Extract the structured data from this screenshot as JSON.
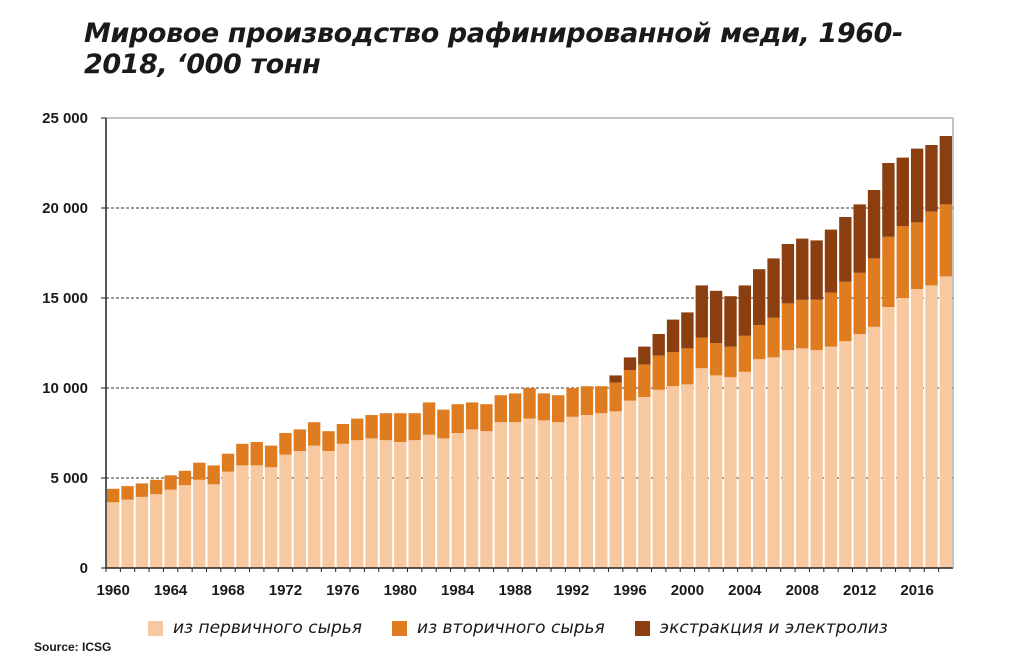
{
  "chart_data": {
    "type": "bar",
    "stacked": true,
    "title": "Мировое производство рафинированной меди, 1960-2018, ‘000 тонн",
    "ylim": [
      0,
      25000
    ],
    "yticks": [
      0,
      5000,
      10000,
      15000,
      20000,
      25000
    ],
    "ytick_labels": [
      "0",
      "5 000",
      "10 000",
      "15 000",
      "20 000",
      "25 000"
    ],
    "xtick_labels": [
      "1960",
      "1964",
      "1968",
      "1972",
      "1976",
      "1980",
      "1984",
      "1988",
      "1992",
      "1996",
      "2000",
      "2004",
      "2008",
      "2012",
      "2016"
    ],
    "grid": "horizontal dashed",
    "legend_position": "bottom",
    "categories": [
      1960,
      1961,
      1962,
      1963,
      1964,
      1965,
      1966,
      1967,
      1968,
      1969,
      1970,
      1971,
      1972,
      1973,
      1974,
      1975,
      1976,
      1977,
      1978,
      1979,
      1980,
      1981,
      1982,
      1983,
      1984,
      1985,
      1986,
      1987,
      1988,
      1989,
      1990,
      1991,
      1992,
      1993,
      1994,
      1995,
      1996,
      1997,
      1998,
      1999,
      2000,
      2001,
      2002,
      2003,
      2004,
      2005,
      2006,
      2007,
      2008,
      2009,
      2010,
      2011,
      2012,
      2013,
      2014,
      2015,
      2016,
      2017,
      2018
    ],
    "series": [
      {
        "name": "из первичного сырья",
        "color": "#f8c9a0",
        "values": [
          3650,
          3800,
          3950,
          4100,
          4350,
          4600,
          4900,
          4650,
          5350,
          5700,
          5700,
          5600,
          6300,
          6500,
          6800,
          6500,
          6900,
          7100,
          7200,
          7100,
          7000,
          7100,
          7400,
          7200,
          7500,
          7700,
          7600,
          8100,
          8100,
          8300,
          8200,
          8100,
          8400,
          8500,
          8600,
          8700,
          9300,
          9500,
          9900,
          10100,
          10200,
          11100,
          10700,
          10600,
          10900,
          11600,
          11700,
          12100,
          12200,
          12100,
          12300,
          12600,
          13000,
          13400,
          14500,
          15000,
          15500,
          15700,
          16200
        ]
      },
      {
        "name": "из вторичного сырья",
        "color": "#e07c20",
        "values": [
          750,
          750,
          750,
          800,
          800,
          800,
          950,
          1050,
          1000,
          1200,
          1300,
          1200,
          1200,
          1200,
          1300,
          1100,
          1100,
          1200,
          1300,
          1500,
          1600,
          1500,
          1800,
          1600,
          1600,
          1500,
          1500,
          1500,
          1600,
          1700,
          1500,
          1500,
          1600,
          1600,
          1500,
          1600,
          1700,
          1800,
          1900,
          1900,
          2000,
          1700,
          1800,
          1700,
          2000,
          1900,
          2200,
          2600,
          2700,
          2800,
          3000,
          3300,
          3400,
          3800,
          3900,
          4000,
          3700,
          4100,
          4000
        ]
      },
      {
        "name": "экстракция и электролиз",
        "color": "#8b3f10",
        "values": [
          0,
          0,
          0,
          0,
          0,
          0,
          0,
          0,
          0,
          0,
          0,
          0,
          0,
          0,
          0,
          0,
          0,
          0,
          0,
          0,
          0,
          0,
          0,
          0,
          0,
          0,
          0,
          0,
          0,
          0,
          0,
          0,
          0,
          0,
          0,
          400,
          700,
          1000,
          1200,
          1800,
          2000,
          2900,
          2900,
          2800,
          2800,
          3100,
          3300,
          3300,
          3400,
          3300,
          3500,
          3600,
          3800,
          3800,
          4100,
          3800,
          4100,
          3700,
          3800
        ]
      }
    ]
  },
  "source": "Source: ICSG"
}
